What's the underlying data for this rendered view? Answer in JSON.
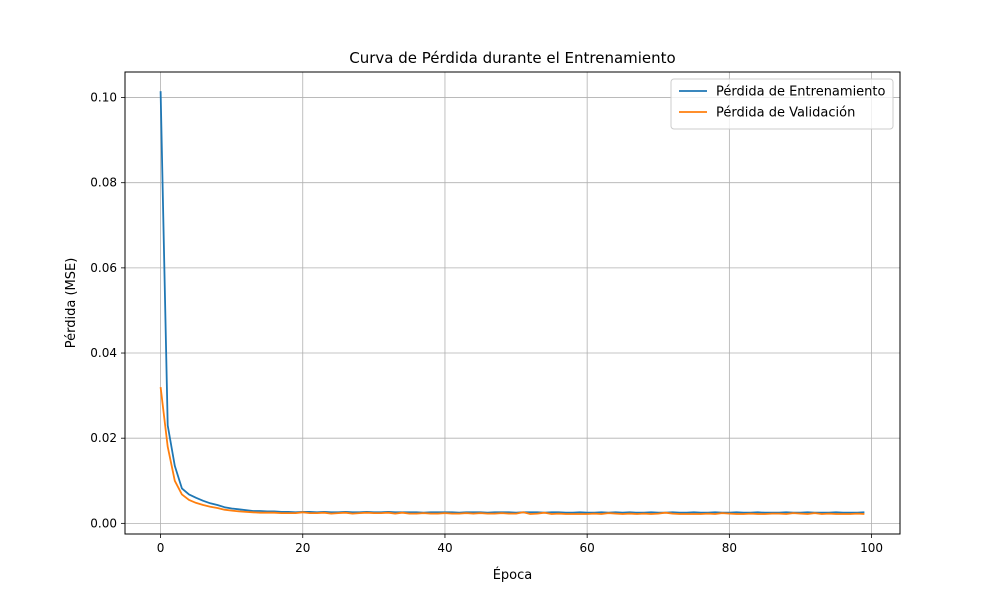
{
  "chart_data": {
    "type": "line",
    "title": "Curva de Pérdida durante el Entrenamiento",
    "xlabel": "Época",
    "ylabel": "Pérdida (MSE)",
    "xlim": [
      -5,
      104
    ],
    "ylim": [
      -0.0025,
      0.106
    ],
    "xticks": [
      0,
      20,
      40,
      60,
      80,
      100
    ],
    "xtick_labels": [
      "0",
      "20",
      "40",
      "60",
      "80",
      "100"
    ],
    "yticks": [
      0.0,
      0.02,
      0.04,
      0.06,
      0.08,
      0.1
    ],
    "ytick_labels": [
      "0.00",
      "0.02",
      "0.04",
      "0.06",
      "0.08",
      "0.10"
    ],
    "grid": true,
    "legend_position": "top-right",
    "series": [
      {
        "name": "Pérdida de Entrenamiento",
        "color": "#1f77b4",
        "x": [
          0,
          1,
          2,
          3,
          4,
          5,
          6,
          7,
          8,
          9,
          10,
          11,
          12,
          13,
          14,
          15,
          16,
          17,
          18,
          19,
          20,
          21,
          22,
          23,
          24,
          25,
          26,
          27,
          28,
          29,
          30,
          31,
          32,
          33,
          34,
          35,
          36,
          37,
          38,
          39,
          40,
          41,
          42,
          43,
          44,
          45,
          46,
          47,
          48,
          49,
          50,
          51,
          52,
          53,
          54,
          55,
          56,
          57,
          58,
          59,
          60,
          61,
          62,
          63,
          64,
          65,
          66,
          67,
          68,
          69,
          70,
          71,
          72,
          73,
          74,
          75,
          76,
          77,
          78,
          79,
          80,
          81,
          82,
          83,
          84,
          85,
          86,
          87,
          88,
          89,
          90,
          91,
          92,
          93,
          94,
          95,
          96,
          97,
          98,
          99
        ],
        "values": [
          0.1015,
          0.023,
          0.0135,
          0.0082,
          0.0068,
          0.006,
          0.0053,
          0.0047,
          0.0043,
          0.0038,
          0.0035,
          0.0033,
          0.0031,
          0.0029,
          0.0029,
          0.0028,
          0.0028,
          0.0027,
          0.0027,
          0.0026,
          0.0027,
          0.0027,
          0.0026,
          0.0027,
          0.0026,
          0.0026,
          0.0027,
          0.0026,
          0.0026,
          0.0027,
          0.0026,
          0.0026,
          0.0027,
          0.0026,
          0.0026,
          0.0026,
          0.0026,
          0.0025,
          0.0026,
          0.0026,
          0.0026,
          0.0026,
          0.0025,
          0.0026,
          0.0026,
          0.0026,
          0.0025,
          0.0026,
          0.0026,
          0.0026,
          0.0025,
          0.0026,
          0.0026,
          0.0026,
          0.0025,
          0.0026,
          0.0026,
          0.0025,
          0.0025,
          0.0026,
          0.0025,
          0.0025,
          0.0026,
          0.0025,
          0.0026,
          0.0025,
          0.0026,
          0.0025,
          0.0025,
          0.0026,
          0.0025,
          0.0025,
          0.0026,
          0.0025,
          0.0025,
          0.0026,
          0.0025,
          0.0025,
          0.0026,
          0.0025,
          0.0025,
          0.0026,
          0.0025,
          0.0025,
          0.0026,
          0.0025,
          0.0025,
          0.0025,
          0.0026,
          0.0025,
          0.0025,
          0.0026,
          0.0025,
          0.0025,
          0.0025,
          0.0026,
          0.0025,
          0.0025,
          0.0025,
          0.0026
        ]
      },
      {
        "name": "Pérdida de Validación",
        "color": "#ff7f0e",
        "x": [
          0,
          1,
          2,
          3,
          4,
          5,
          6,
          7,
          8,
          9,
          10,
          11,
          12,
          13,
          14,
          15,
          16,
          17,
          18,
          19,
          20,
          21,
          22,
          23,
          24,
          25,
          26,
          27,
          28,
          29,
          30,
          31,
          32,
          33,
          34,
          35,
          36,
          37,
          38,
          39,
          40,
          41,
          42,
          43,
          44,
          45,
          46,
          47,
          48,
          49,
          50,
          51,
          52,
          53,
          54,
          55,
          56,
          57,
          58,
          59,
          60,
          61,
          62,
          63,
          64,
          65,
          66,
          67,
          68,
          69,
          70,
          71,
          72,
          73,
          74,
          75,
          76,
          77,
          78,
          79,
          80,
          81,
          82,
          83,
          84,
          85,
          86,
          87,
          88,
          89,
          90,
          91,
          92,
          93,
          94,
          95,
          96,
          97,
          98,
          99
        ],
        "values": [
          0.032,
          0.018,
          0.01,
          0.0068,
          0.0055,
          0.0048,
          0.0043,
          0.0039,
          0.0036,
          0.0032,
          0.003,
          0.0028,
          0.0027,
          0.0026,
          0.0025,
          0.0025,
          0.0025,
          0.0024,
          0.0024,
          0.0024,
          0.0026,
          0.0024,
          0.0024,
          0.0025,
          0.0023,
          0.0024,
          0.0025,
          0.0023,
          0.0024,
          0.0025,
          0.0024,
          0.0024,
          0.0025,
          0.0023,
          0.0025,
          0.0023,
          0.0023,
          0.0024,
          0.0023,
          0.0023,
          0.0024,
          0.0023,
          0.0023,
          0.0024,
          0.0023,
          0.0024,
          0.0023,
          0.0023,
          0.0024,
          0.0023,
          0.0023,
          0.0026,
          0.0022,
          0.0023,
          0.0025,
          0.0022,
          0.0023,
          0.0022,
          0.0022,
          0.0022,
          0.0022,
          0.0023,
          0.0022,
          0.0024,
          0.0023,
          0.0022,
          0.0023,
          0.0022,
          0.0023,
          0.0022,
          0.0023,
          0.0025,
          0.0023,
          0.0022,
          0.0022,
          0.0022,
          0.0022,
          0.0023,
          0.0022,
          0.0024,
          0.0023,
          0.0022,
          0.0022,
          0.0023,
          0.0022,
          0.0022,
          0.0023,
          0.0023,
          0.0022,
          0.0024,
          0.0023,
          0.0022,
          0.0024,
          0.0022,
          0.0023,
          0.0022,
          0.0022,
          0.0022,
          0.0023,
          0.0022
        ]
      }
    ]
  }
}
